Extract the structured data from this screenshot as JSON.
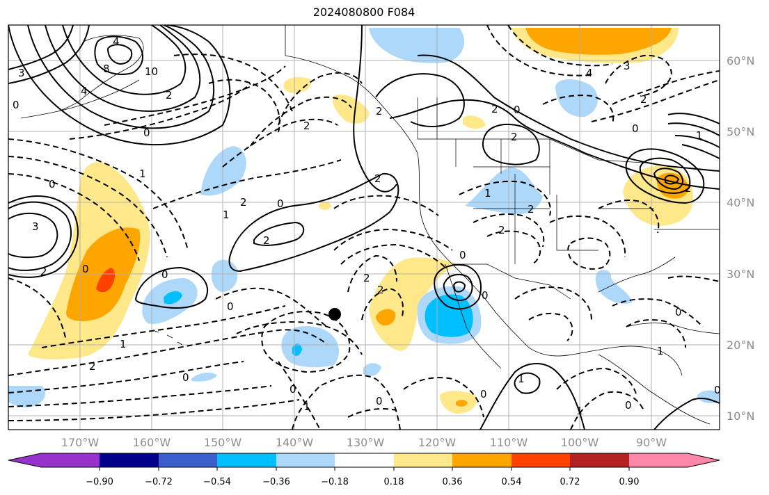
{
  "map": {
    "title": "2024080800 F084",
    "lat_labels": [
      "60°N",
      "50°N",
      "40°N",
      "30°N",
      "20°N",
      "10°N"
    ],
    "lon_labels": [
      "170°W",
      "160°W",
      "150°W",
      "140°W",
      "130°W",
      "120°W",
      "110°W",
      "100°W",
      "90°W"
    ],
    "colorbar": {
      "ticks": [
        "−0.90",
        "−0.72",
        "−0.54",
        "−0.36",
        "−0.18",
        "0.18",
        "0.36",
        "0.54",
        "0.72",
        "0.90"
      ],
      "colors": [
        "#9932cc",
        "#00008b",
        "#3a5fcd",
        "#00bfff",
        "#add8f9",
        "#ffffff",
        "#ffe88a",
        "#ffa500",
        "#ff4000",
        "#b22222",
        "#ff88aa"
      ]
    },
    "contour_labels": [
      "3",
      "2",
      "1",
      "0",
      "0",
      "2",
      "1",
      "2",
      "0",
      "2",
      "2",
      "0",
      "0",
      "1",
      "2",
      "2",
      "2",
      "0",
      "0",
      "2",
      "1",
      "2",
      "2",
      "0",
      "0",
      "1",
      "1",
      "0",
      "0",
      "0",
      "2",
      "4",
      "3",
      "2",
      "0",
      "8",
      "10",
      "4",
      "4",
      "2",
      "0",
      "3",
      "0",
      "0",
      "1",
      "1",
      "0",
      "1",
      "2",
      "2",
      "0"
    ],
    "colors": {
      "positive_fill_light": "#ffe88a",
      "positive_fill_mid": "#ffa500",
      "positive_fill_strong": "#ff4000",
      "negative_fill_light": "#add8f9",
      "negative_fill_mid": "#00bfff",
      "grid": "#b0b0b0",
      "axis_label": "#8c8c8c"
    }
  }
}
